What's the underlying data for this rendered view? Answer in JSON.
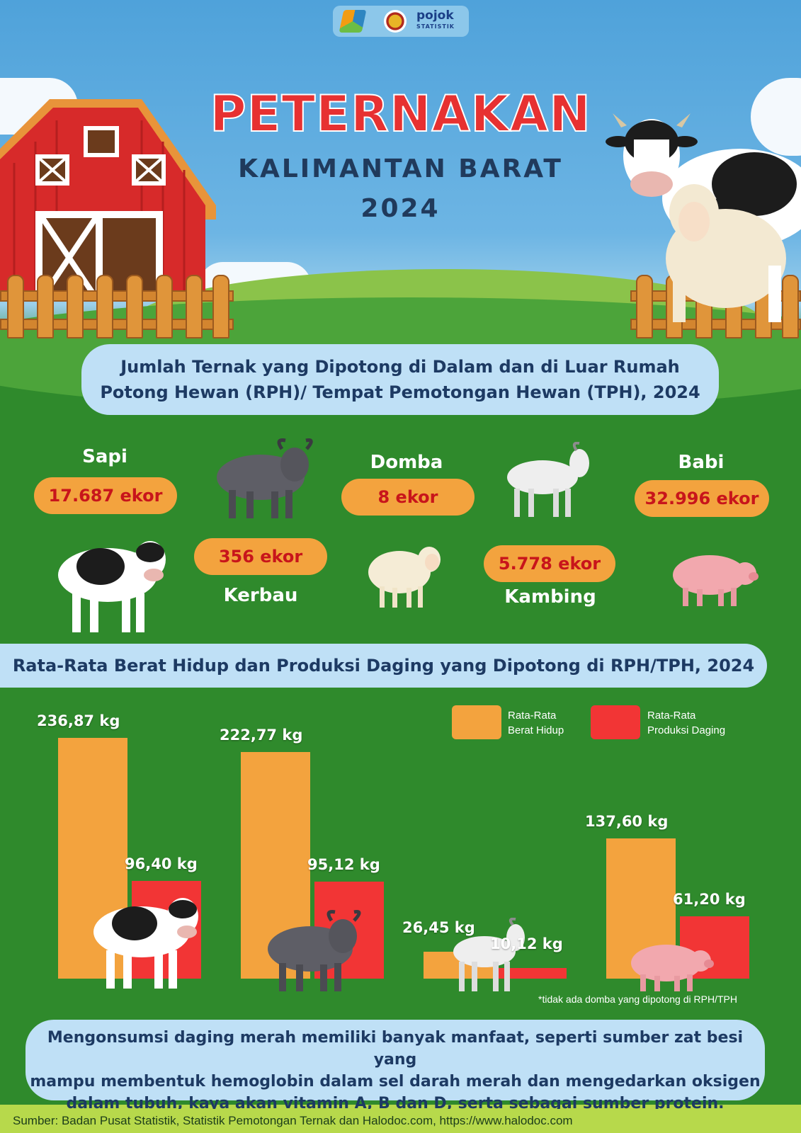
{
  "header": {
    "logo_text": "pojok",
    "logo_sub": "STATISTIK",
    "title": "PETERNAKAN",
    "subtitle": "KALIMANTAN BARAT",
    "year": "2024"
  },
  "section1": {
    "heading_line1": "Jumlah Ternak yang Dipotong di Dalam dan di Luar Rumah",
    "heading_line2": "Potong Hewan (RPH)/ Tempat Pemotongan Hewan (TPH), 2024",
    "animals": [
      {
        "name": "Sapi",
        "count": "17.687 ekor"
      },
      {
        "name": "Kerbau",
        "count": "356 ekor"
      },
      {
        "name": "Domba",
        "count": "8 ekor"
      },
      {
        "name": "Kambing",
        "count": "5.778 ekor"
      },
      {
        "name": "Babi",
        "count": "32.996 ekor"
      }
    ]
  },
  "section2": {
    "heading": "Rata-Rata Berat Hidup dan Produksi Daging yang Dipotong di RPH/TPH, 2024",
    "footnote": "*tidak ada domba yang dipotong di RPH/TPH"
  },
  "chart_data": {
    "type": "bar",
    "categories": [
      "Sapi",
      "Kerbau",
      "Kambing",
      "Babi"
    ],
    "series": [
      {
        "name": "Rata-Rata Berat Hidup",
        "values": [
          236.87,
          222.77,
          26.45,
          137.6
        ],
        "labels": [
          "236,87 kg",
          "222,77 kg",
          "26,45 kg",
          "137,60 kg"
        ],
        "color": "#f3a33e"
      },
      {
        "name": "Rata-Rata Produksi Daging",
        "values": [
          96.4,
          95.12,
          10.12,
          61.2
        ],
        "labels": [
          "96,40 kg",
          "95,12 kg",
          "10,12 kg",
          "61,20 kg"
        ],
        "color": "#f23535"
      }
    ],
    "legend": {
      "position": "top-right",
      "items": [
        {
          "line1": "Rata-Rata",
          "line2": "Berat Hidup",
          "color": "#f3a33e"
        },
        {
          "line1": "Rata-Rata",
          "line2": "Produksi Daging",
          "color": "#f23535"
        }
      ]
    },
    "ylim": [
      0,
      236.87
    ],
    "grid": false
  },
  "note": {
    "line1": "Mengonsumsi daging merah memiliki banyak manfaat, seperti sumber zat besi yang",
    "line2": "mampu membentuk hemoglobin dalam sel darah merah dan mengedarkan oksigen",
    "line3": "dalam tubuh, kaya akan vitamin A, B dan D, serta sebagai sumber protein."
  },
  "footer": {
    "source": "Sumber: Badan Pusat Statistik, Statistik Pemotongan Ternak dan  Halodoc.com, https://www.halodoc.com"
  },
  "colors": {
    "sky": "#4fa2da",
    "grass": "#2f8a2c",
    "title_red": "#e73131",
    "pill_blue": "#bfe0f6",
    "count_orange": "#f3a33e"
  }
}
